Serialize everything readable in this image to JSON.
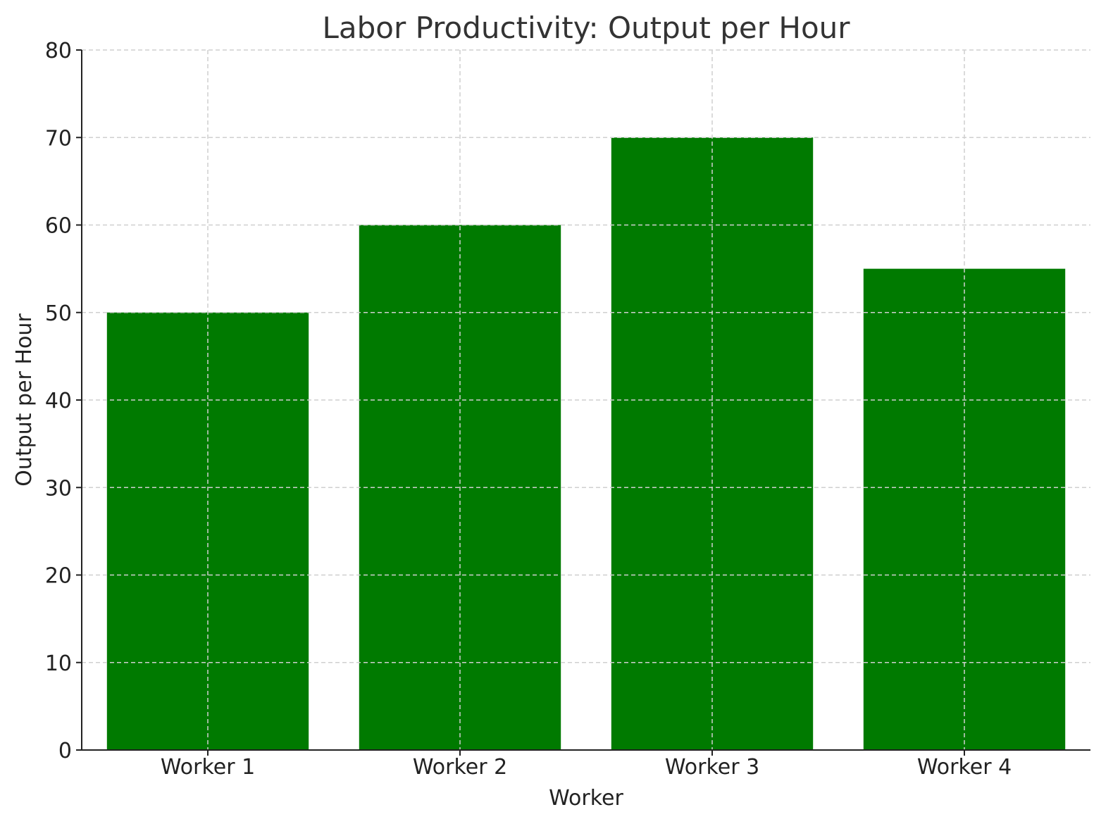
{
  "chart_data": {
    "type": "bar",
    "title": "Labor Productivity: Output per Hour",
    "xlabel": "Worker",
    "ylabel": "Output per Hour",
    "categories": [
      "Worker 1",
      "Worker 2",
      "Worker 3",
      "Worker 4"
    ],
    "values": [
      50,
      60,
      70,
      55
    ],
    "ylim": [
      0,
      80
    ],
    "yticks": [
      0,
      10,
      20,
      30,
      40,
      50,
      60,
      70,
      80
    ],
    "grid": true,
    "bar_color": "#007a00",
    "grid_color": "#cfcfcf"
  }
}
